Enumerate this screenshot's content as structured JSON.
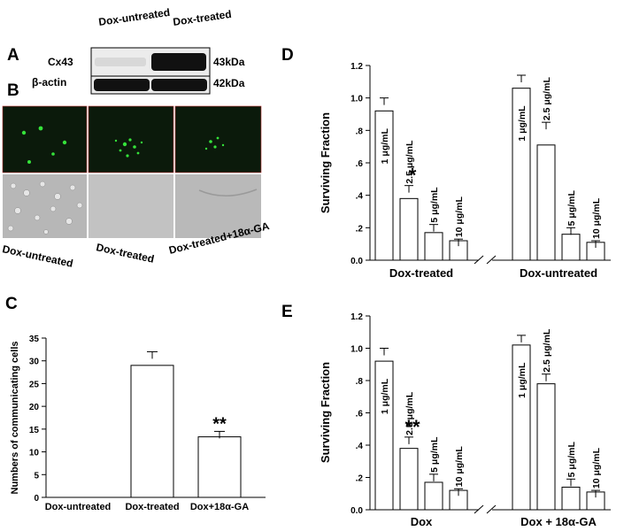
{
  "panel_letters": {
    "A": "A",
    "B": "B",
    "C": "C",
    "D": "D",
    "E": "E"
  },
  "panel_a": {
    "col_headers": [
      "Dox-untreated",
      "Dox-treated"
    ],
    "rows": [
      {
        "name": "Cx43",
        "size": "43kDa",
        "bands": [
          0.05,
          1.0
        ]
      },
      {
        "name": "β-actin",
        "size": "42kDa",
        "bands": [
          1.0,
          1.0
        ]
      }
    ]
  },
  "panel_b": {
    "labels": [
      "Dox-untreated",
      "Dox-treated",
      "Dox-treated+18α-GA"
    ],
    "colors": {
      "fluorescence_bg": "#0b1a0b",
      "dots": "#35e23a",
      "phase_bg": "#b7b7b7"
    }
  },
  "chart_data": [
    {
      "panel": "C",
      "type": "bar",
      "categories": [
        "Dox-untreated",
        "Dox-treated",
        "Dox+18α-GA"
      ],
      "values": [
        0,
        29,
        13.3
      ],
      "errors": [
        0,
        3,
        1.2
      ],
      "ylabel": "Numbers of communicating cells",
      "ylim": [
        0,
        35
      ],
      "yticks": [
        0,
        5,
        10,
        15,
        20,
        25,
        30,
        35
      ],
      "ytick_labels": [
        "0",
        "5",
        "10",
        "15",
        "20",
        "25",
        "30",
        "35"
      ],
      "annotations": [
        {
          "category": "Dox+18α-GA",
          "text": "**"
        }
      ]
    },
    {
      "panel": "D",
      "type": "bar",
      "groups": [
        {
          "label": "Dox-treated",
          "bar_labels": [
            "1 μg/mL",
            "2.5 μg/mL",
            "5 μg/mL",
            "10 μg/mL"
          ],
          "values": [
            0.92,
            0.38,
            0.17,
            0.12
          ],
          "errors": [
            0.08,
            0.08,
            0.05,
            0.01
          ],
          "annotations": [
            "",
            "*",
            "",
            ""
          ]
        },
        {
          "label": "Dox-untreated",
          "bar_labels": [
            "1 μg/mL",
            "2.5 μg/mL",
            "5 μg/mL",
            "10 μg/mL"
          ],
          "values": [
            1.06,
            0.71,
            0.16,
            0.11
          ],
          "errors": [
            0.08,
            0.14,
            0.04,
            0.01
          ],
          "annotations": [
            "",
            "",
            "",
            ""
          ]
        }
      ],
      "ylabel": "Surviving Fraction",
      "ylim": [
        0,
        1.2
      ],
      "yticks": [
        0,
        0.2,
        0.4,
        0.6,
        0.8,
        1.0,
        1.2
      ],
      "ytick_labels": [
        "0.0",
        ".2",
        ".4",
        ".6",
        ".8",
        "1.0",
        "1.2"
      ]
    },
    {
      "panel": "E",
      "type": "bar",
      "groups": [
        {
          "label": "Dox",
          "bar_labels": [
            "1 μg/mL",
            "2.5 μg/mL",
            "5 μg/mL",
            "10 μg/mL"
          ],
          "values": [
            0.92,
            0.38,
            0.17,
            0.12
          ],
          "errors": [
            0.08,
            0.07,
            0.05,
            0.01
          ],
          "annotations": [
            "",
            "**",
            "",
            ""
          ]
        },
        {
          "label": "Dox + 18α-GA",
          "bar_labels": [
            "1 μg/mL",
            "2.5 μg/mL",
            "5 μg/mL",
            "10 μg/mL"
          ],
          "values": [
            1.02,
            0.78,
            0.14,
            0.11
          ],
          "errors": [
            0.06,
            0.06,
            0.05,
            0.01
          ],
          "annotations": [
            "",
            "",
            "",
            ""
          ]
        }
      ],
      "ylabel": "Surviving Fraction",
      "ylim": [
        0,
        1.2
      ],
      "yticks": [
        0,
        0.2,
        0.4,
        0.6,
        0.8,
        1.0,
        1.2
      ],
      "ytick_labels": [
        "0.0",
        ".2",
        ".4",
        ".6",
        ".8",
        "1.0",
        "1.2"
      ]
    }
  ]
}
